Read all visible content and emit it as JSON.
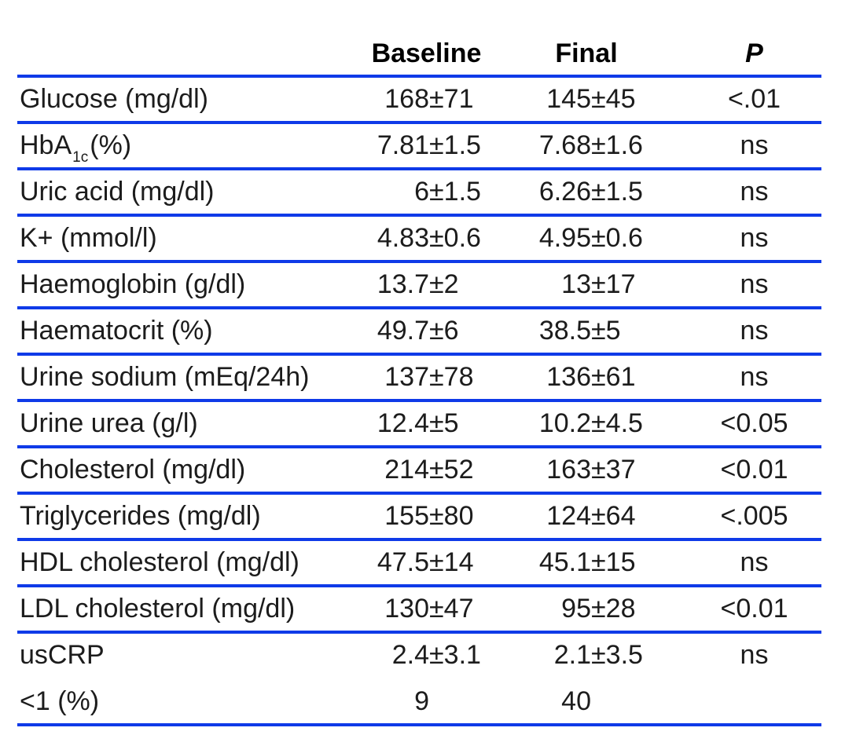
{
  "table": {
    "accent_color": "#0f3ae8",
    "header": {
      "metric": "",
      "baseline": "Baseline",
      "final": "Final",
      "p": "P"
    },
    "rows": [
      {
        "label": "Glucose (mg/dl)",
        "baseline": "168±71",
        "final": "145±45",
        "p": "<.01"
      },
      {
        "label": "HbA",
        "sub": "1c",
        "suffix": "(%)",
        "baseline": "7.81±1.5",
        "final": "7.68±1.6",
        "p": "ns"
      },
      {
        "label": "Uric acid (mg/dl)",
        "baseline": "6±1.5",
        "final": "6.26±1.5",
        "p": "ns"
      },
      {
        "label": "K+ (mmol/l)",
        "baseline": "4.83±0.6",
        "final": "4.95±0.6",
        "p": "ns"
      },
      {
        "label": "Haemoglobin (g/dl)",
        "baseline": "13.7±2",
        "final": "13±17",
        "p": "ns"
      },
      {
        "label": "Haematocrit (%)",
        "baseline": "49.7±6",
        "final": "38.5±5",
        "p": "ns"
      },
      {
        "label": "Urine sodium (mEq/24h)",
        "baseline": "137±78",
        "final": "136±61",
        "p": "ns"
      },
      {
        "label": "Urine urea (g/l)",
        "baseline": "12.4±5",
        "final": "10.2±4.5",
        "p": "<0.05"
      },
      {
        "label": "Cholesterol (mg/dl)",
        "baseline": "214±52",
        "final": "163±37",
        "p": "<0.01"
      },
      {
        "label": "Triglycerides (mg/dl)",
        "baseline": "155±80",
        "final": "124±64",
        "p": "<.005"
      },
      {
        "label": "HDL cholesterol (mg/dl)",
        "baseline": "47.5±14",
        "final": "45.1±15",
        "p": "ns"
      },
      {
        "label": "LDL cholesterol (mg/dl)",
        "baseline": "130±47",
        "final": "95±28",
        "p": "<0.01"
      },
      {
        "label": "usCRP",
        "baseline": "2.4±3.1",
        "final": "2.1±3.5",
        "p": "ns"
      },
      {
        "label": "<1 (%)",
        "baseline": "9",
        "final": "40",
        "p": ""
      }
    ]
  }
}
